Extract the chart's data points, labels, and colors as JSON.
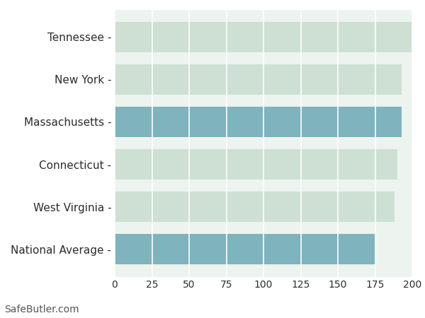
{
  "categories": [
    "Tennessee",
    "New York",
    "Massachusetts",
    "Connecticut",
    "West Virginia",
    "National Average"
  ],
  "values": [
    200,
    193,
    193,
    190,
    188,
    175
  ],
  "bar_colors": [
    "#cde0d3",
    "#cde0d3",
    "#7fb3be",
    "#cde0d3",
    "#cde0d3",
    "#7fb3be"
  ],
  "xlim": [
    0,
    200
  ],
  "xticks": [
    0,
    25,
    50,
    75,
    100,
    125,
    150,
    175,
    200
  ],
  "background_color": "#ffffff",
  "plot_bg_color": "#edf3ee",
  "grid_color": "#ffffff",
  "footer_text": "SafeButler.com",
  "footer_fontsize": 10,
  "tick_fontsize": 10,
  "label_fontsize": 11,
  "label_color": "#2c2c2c",
  "bar_height": 0.72
}
